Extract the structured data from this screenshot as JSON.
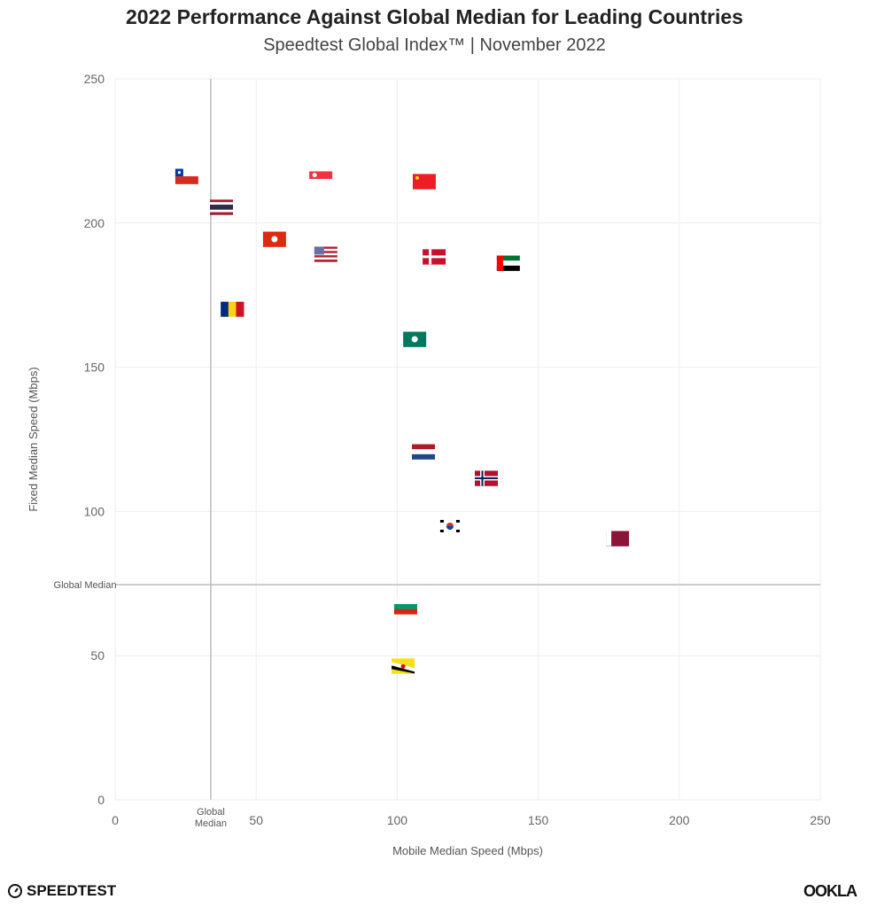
{
  "chart_data": {
    "type": "scatter",
    "title": "2022 Performance Against Global Median for Leading Countries",
    "subtitle": "Speedtest Global Index™ | November 2022",
    "xlabel": "Mobile Median Speed (Mbps)",
    "ylabel": "Fixed Median Speed (Mbps)",
    "xlim": [
      0,
      250
    ],
    "ylim": [
      0,
      250
    ],
    "xticks": [
      0,
      50,
      100,
      150,
      200,
      250
    ],
    "yticks": [
      0,
      50,
      100,
      150,
      200,
      250
    ],
    "grid": true,
    "global_median": {
      "label": "Global Median",
      "x_label": "Global\nMedian",
      "mobile": 33.9,
      "fixed": 74.6
    },
    "markers": "country flags",
    "points": [
      {
        "flag": "chile-flag",
        "x": 25.4,
        "y": 216.2
      },
      {
        "flag": "thailand-flag",
        "x": 37.7,
        "y": 205.5
      },
      {
        "flag": "singapore-flag",
        "x": 72.9,
        "y": 215.3
      },
      {
        "flag": "china-flag",
        "x": 109.6,
        "y": 214.4
      },
      {
        "flag": "hong-kong-flag",
        "x": 56.5,
        "y": 194.4
      },
      {
        "flag": "usa-flag",
        "x": 74.7,
        "y": 189.2
      },
      {
        "flag": "denmark-flag",
        "x": 113.1,
        "y": 188.3
      },
      {
        "flag": "uae-flag",
        "x": 139.4,
        "y": 186.1
      },
      {
        "flag": "romania-flag",
        "x": 41.5,
        "y": 170.1
      },
      {
        "flag": "macau-flag",
        "x": 106.2,
        "y": 159.7
      },
      {
        "flag": "netherlands-flag",
        "x": 109.3,
        "y": 120.7
      },
      {
        "flag": "norway-flag",
        "x": 131.6,
        "y": 111.5
      },
      {
        "flag": "south-korea-flag",
        "x": 118.7,
        "y": 94.9
      },
      {
        "flag": "qatar-flag",
        "x": 178.1,
        "y": 90.6
      },
      {
        "flag": "bulgaria-flag",
        "x": 103.0,
        "y": 67.0
      },
      {
        "flag": "brunei-flag",
        "x": 102.1,
        "y": 46.4
      }
    ]
  },
  "branding": {
    "left_logo": "SPEEDTEST",
    "right_logo": "OOKLA"
  }
}
